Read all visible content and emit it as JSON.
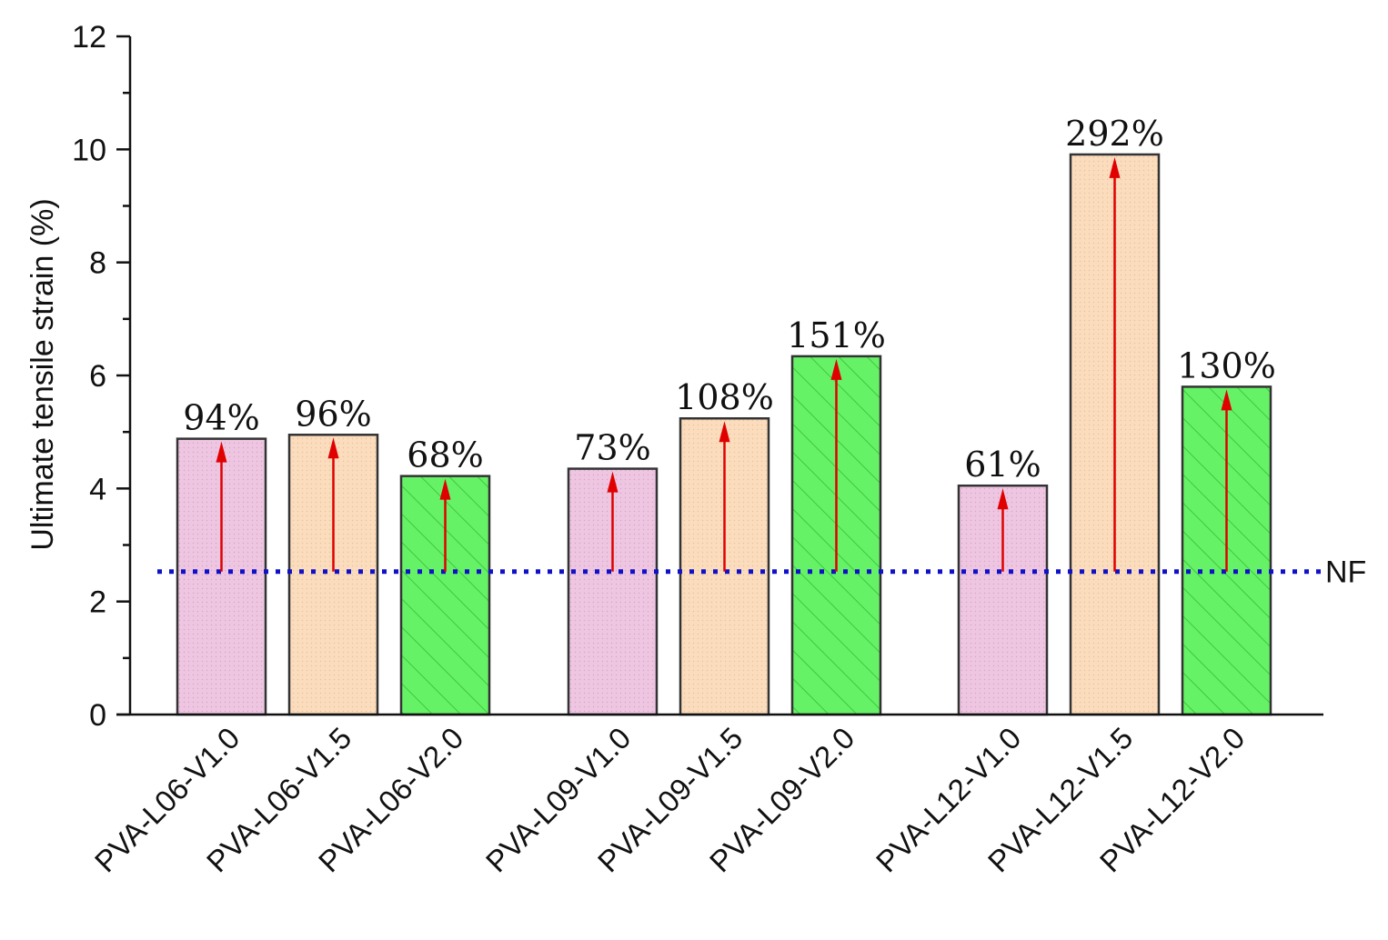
{
  "chart_data": {
    "type": "bar",
    "title": "",
    "xlabel": "",
    "ylabel": "Ultimate tensile strain (%)",
    "ylim": [
      0,
      12
    ],
    "yticks": [
      "0",
      "2",
      "4",
      "6",
      "8",
      "10",
      "12"
    ],
    "grid": false,
    "categories": [
      "PVA-L06-V1.0",
      "PVA-L06-V1.5",
      "PVA-L06-V2.0",
      "PVA-L09-V1.0",
      "PVA-L09-V1.5",
      "PVA-L09-V2.0",
      "PVA-L12-V1.0",
      "PVA-L12-V1.5",
      "PVA-L12-V2.0"
    ],
    "groups": [
      0,
      0,
      0,
      1,
      1,
      1,
      2,
      2,
      2
    ],
    "values": [
      4.88,
      4.95,
      4.22,
      4.35,
      5.24,
      6.34,
      4.05,
      9.91,
      5.8
    ],
    "labels": [
      "94%",
      "96%",
      "68%",
      "73%",
      "108%",
      "151%",
      "61%",
      "292%",
      "130%"
    ],
    "fill_types": [
      "V1.0",
      "V1.5",
      "V2.0",
      "V1.0",
      "V1.5",
      "V2.0",
      "V1.0",
      "V1.5",
      "V2.0"
    ],
    "reference_line": {
      "label": "NF",
      "value": 2.53
    },
    "colors": {
      "V1.0": "#eec6e2",
      "V1.5": "#fbdcbd",
      "V2.0": "#66f266",
      "arrow": "#e00000",
      "reference": "#1010c8"
    }
  }
}
